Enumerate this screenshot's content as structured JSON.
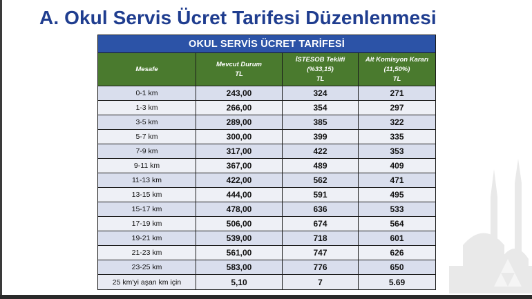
{
  "page": {
    "title": "A. Okul Servis Ücret Tarifesi Düzenlenmesi"
  },
  "table": {
    "banner": "OKUL SERVİS ÜCRET TARİFESİ",
    "headers": [
      {
        "lines": [
          "Mesafe"
        ]
      },
      {
        "lines": [
          "Mevcut Durum",
          "TL"
        ]
      },
      {
        "lines": [
          "İSTESOB Teklifi",
          "(%33,15)",
          "TL"
        ]
      },
      {
        "lines": [
          "Alt Komisyon Kararı",
          "(11,50%)",
          "TL"
        ]
      }
    ],
    "rows": [
      [
        "0-1 km",
        "243,00",
        "324",
        "271"
      ],
      [
        "1-3 km",
        "266,00",
        "354",
        "297"
      ],
      [
        "3-5 km",
        "289,00",
        "385",
        "322"
      ],
      [
        "5-7 km",
        "300,00",
        "399",
        "335"
      ],
      [
        "7-9 km",
        "317,00",
        "422",
        "353"
      ],
      [
        "9-11 km",
        "367,00",
        "489",
        "409"
      ],
      [
        "11-13 km",
        "422,00",
        "562",
        "471"
      ],
      [
        "13-15 km",
        "444,00",
        "591",
        "495"
      ],
      [
        "15-17 km",
        "478,00",
        "636",
        "533"
      ],
      [
        "17-19 km",
        "506,00",
        "674",
        "564"
      ],
      [
        "19-21 km",
        "539,00",
        "718",
        "601"
      ],
      [
        "21-23 km",
        "561,00",
        "747",
        "626"
      ],
      [
        "23-25 km",
        "583,00",
        "776",
        "650"
      ],
      [
        "25 km'yi aşan km için",
        "5,10",
        "7",
        "5.69"
      ]
    ]
  },
  "colors": {
    "title": "#1f3d8f",
    "banner": "#2c53a7",
    "header": "#4a7a2e",
    "row_odd": "#d9deed",
    "row_even": "#eef0f6"
  },
  "icons": [
    "city-skyline-watermark-icon"
  ]
}
